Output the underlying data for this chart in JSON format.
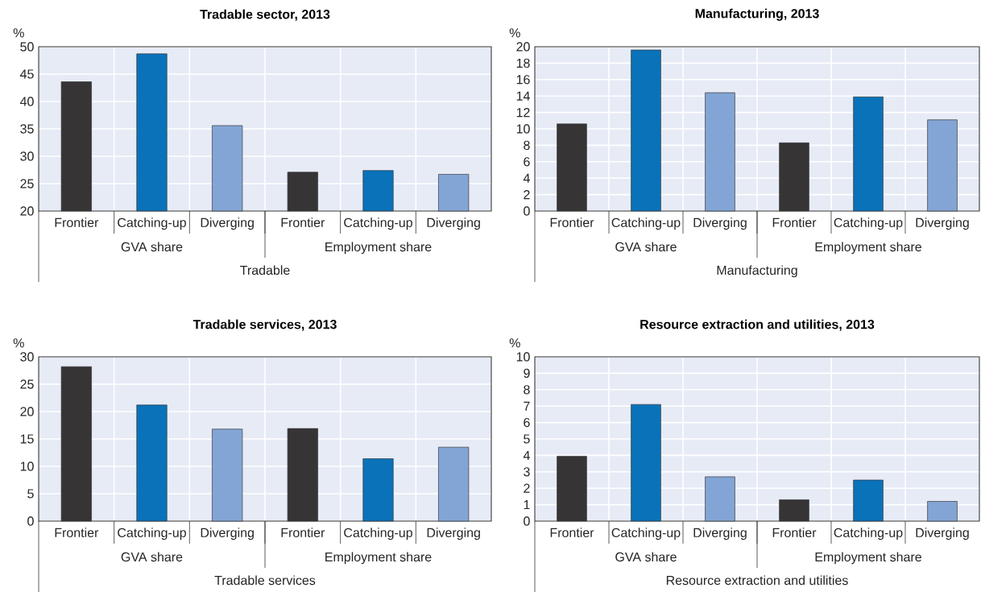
{
  "chart_data": [
    {
      "type": "bar",
      "title": "Tradable sector, 2013",
      "ylabel": "%",
      "xlabel": "Tradable",
      "annotations": [
        "GVA share",
        "Employment share"
      ],
      "categories": [
        "Frontier",
        "Catching-up",
        "Diverging",
        "Frontier",
        "Catching-up",
        "Diverging"
      ],
      "values": [
        43.6,
        48.7,
        35.6,
        27.1,
        27.4,
        26.7
      ],
      "colors": [
        "#363435",
        "#0a72b9",
        "#83a5d5",
        "#363435",
        "#0a72b9",
        "#83a5d5"
      ],
      "ylim": [
        20,
        50
      ],
      "yticks": [
        20,
        25,
        30,
        35,
        40,
        45,
        50
      ],
      "grid": true
    },
    {
      "type": "bar",
      "title": "Manufacturing, 2013",
      "ylabel": "%",
      "xlabel": "Manufacturing",
      "annotations": [
        "GVA share",
        "Employment share"
      ],
      "categories": [
        "Frontier",
        "Catching-up",
        "Diverging",
        "Frontier",
        "Catching-up",
        "Diverging"
      ],
      "values": [
        10.6,
        19.6,
        14.4,
        8.3,
        13.9,
        11.1
      ],
      "colors": [
        "#363435",
        "#0a72b9",
        "#83a5d5",
        "#363435",
        "#0a72b9",
        "#83a5d5"
      ],
      "ylim": [
        0,
        20
      ],
      "yticks": [
        0,
        2,
        4,
        6,
        8,
        10,
        12,
        14,
        16,
        18,
        20
      ],
      "grid": true
    },
    {
      "type": "bar",
      "title": "Tradable services, 2013",
      "ylabel": "%",
      "xlabel": "Tradable services",
      "annotations": [
        "GVA share",
        "Employment share"
      ],
      "categories": [
        "Frontier",
        "Catching-up",
        "Diverging",
        "Frontier",
        "Catching-up",
        "Diverging"
      ],
      "values": [
        28.2,
        21.2,
        16.8,
        16.9,
        11.4,
        13.5
      ],
      "colors": [
        "#363435",
        "#0a72b9",
        "#83a5d5",
        "#363435",
        "#0a72b9",
        "#83a5d5"
      ],
      "ylim": [
        0,
        30
      ],
      "yticks": [
        0,
        5,
        10,
        15,
        20,
        25,
        30
      ],
      "grid": true
    },
    {
      "type": "bar",
      "title": "Resource extraction and utilities, 2013",
      "ylabel": "%",
      "xlabel": "Resource extraction and utilities",
      "annotations": [
        "GVA share",
        "Employment share"
      ],
      "categories": [
        "Frontier",
        "Catching-up",
        "Diverging",
        "Frontier",
        "Catching-up",
        "Diverging"
      ],
      "values": [
        3.95,
        7.1,
        2.7,
        1.3,
        2.5,
        1.2
      ],
      "colors": [
        "#363435",
        "#0a72b9",
        "#83a5d5",
        "#363435",
        "#0a72b9",
        "#83a5d5"
      ],
      "ylim": [
        0,
        10
      ],
      "yticks": [
        0,
        1,
        2,
        3,
        4,
        5,
        6,
        7,
        8,
        9,
        10
      ],
      "grid": true
    }
  ]
}
